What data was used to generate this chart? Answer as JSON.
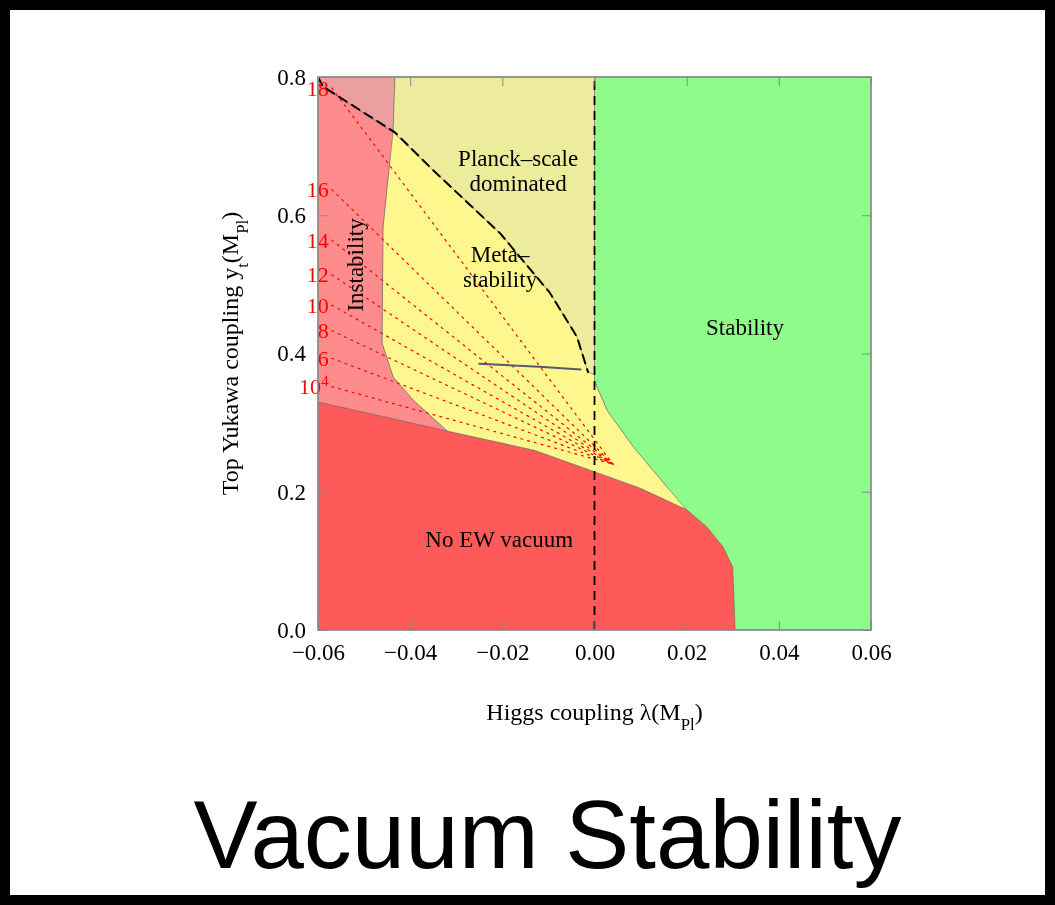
{
  "chart_data": {
    "type": "area",
    "title": "Vacuum Stability",
    "xlabel": "Higgs coupling λ(M$_{Pl}$)",
    "ylabel": "Top Yukawa coupling y$_{t}$(M$_{Pl}$)",
    "xlim": [
      -0.06,
      0.06
    ],
    "ylim": [
      0,
      0.8
    ],
    "xticks": [
      {
        "value": -0.06,
        "label": "−0.06"
      },
      {
        "value": -0.04,
        "label": "−0.04"
      },
      {
        "value": -0.02,
        "label": "−0.02"
      },
      {
        "value": 0,
        "label": "0.00"
      },
      {
        "value": 0.02,
        "label": "0.02"
      },
      {
        "value": 0.04,
        "label": "0.04"
      },
      {
        "value": 0.06,
        "label": "0.06"
      }
    ],
    "yticks": [
      {
        "value": 0,
        "label": "0.0"
      },
      {
        "value": 0.2,
        "label": "0.2"
      },
      {
        "value": 0.4,
        "label": "0.4"
      },
      {
        "value": 0.6,
        "label": "0.6"
      },
      {
        "value": 0.8,
        "label": "0.8"
      }
    ],
    "series": [
      {
        "name": "Stability",
        "color": "#8ffb8a",
        "x": [
          0,
          0,
          0.0027,
          0.0084,
          0.0157,
          0.0305,
          0.06,
          0.06
        ],
        "values": [
          0.8,
          0.36,
          0.318,
          0.265,
          0.207,
          0,
          0,
          0.8
        ]
      },
      {
        "name": "No EW vacuum",
        "color": "#ff5a5a",
        "x": [
          -0.06,
          -0.06,
          -0.032,
          -0.013,
          0,
          0.01,
          0.02,
          0.0244,
          0.0279,
          0.03,
          0.0305,
          0.0305
        ],
        "values": [
          0,
          0.33,
          0.288,
          0.26,
          0.229,
          0.205,
          0.174,
          0.149,
          0.12,
          0.091,
          0.004,
          0
        ]
      },
      {
        "name": "Meta–\nstability",
        "color": "#fdf78d",
        "x": [
          -0.0433,
          -0.0444,
          -0.0459,
          -0.0461,
          -0.0437,
          -0.0394,
          -0.032,
          -0.013,
          0,
          0.01,
          0.02,
          0.0157,
          0.0084,
          0.0027,
          0,
          0
        ],
        "values": [
          0.8,
          0.68,
          0.583,
          0.415,
          0.366,
          0.333,
          0.288,
          0.26,
          0.229,
          0.205,
          0.174,
          0.207,
          0.265,
          0.318,
          0.36,
          0.8
        ]
      },
      {
        "name": "Instability",
        "color": "#ff8c8c",
        "x": [
          -0.06,
          -0.06,
          -0.0589,
          -0.0437,
          -0.0444,
          -0.0459,
          -0.0461,
          -0.0437,
          -0.0394,
          -0.032
        ],
        "values": [
          0.33,
          0.8,
          0.786,
          0.72,
          0.68,
          0.583,
          0.415,
          0.366,
          0.333,
          0.288
        ]
      },
      {
        "color": "#eb9f9f",
        "x": [
          -0.06,
          -0.0433,
          -0.0437,
          -0.0589
        ],
        "values": [
          0.8,
          0.8,
          0.72,
          0.786
        ]
      },
      {
        "type": "line",
        "name": "10$^{4}$",
        "color": "#ff0000",
        "line_style": "dotted",
        "x": [
          -0.057,
          0.004
        ],
        "values": [
          0.352,
          0.24
        ]
      },
      {
        "type": "line",
        "name": "6",
        "color": "#ff0000",
        "line_style": "dotted",
        "x": [
          -0.057,
          0.004
        ],
        "values": [
          0.393,
          0.24
        ]
      },
      {
        "type": "line",
        "name": "8",
        "color": "#ff0000",
        "line_style": "dotted",
        "x": [
          -0.057,
          0.004
        ],
        "values": [
          0.433,
          0.24
        ]
      },
      {
        "type": "line",
        "name": "10",
        "color": "#ff0000",
        "line_style": "dotted",
        "x": [
          -0.057,
          0.004
        ],
        "values": [
          0.47,
          0.24
        ]
      },
      {
        "type": "line",
        "name": "12",
        "color": "#ff0000",
        "line_style": "dotted",
        "x": [
          -0.057,
          0.004
        ],
        "values": [
          0.514,
          0.24
        ]
      },
      {
        "type": "line",
        "name": "14",
        "color": "#ff0000",
        "line_style": "dotted",
        "x": [
          -0.057,
          0.004
        ],
        "values": [
          0.564,
          0.24
        ]
      },
      {
        "type": "line",
        "name": "16",
        "color": "#ff0000",
        "line_style": "dotted",
        "x": [
          -0.057,
          0.004
        ],
        "values": [
          0.637,
          0.24
        ]
      },
      {
        "type": "line",
        "name": "18",
        "color": "#ff0000",
        "line_style": "dotted",
        "x": [
          -0.057,
          0.004
        ],
        "values": [
          0.784,
          0.24
        ]
      },
      {
        "name": "Planck–scale\ndominated",
        "color": "#ecec9c",
        "x": [
          -0.0433,
          0,
          0,
          -0.0014,
          -0.0038,
          -0.0097,
          -0.0205,
          -0.035,
          -0.0437
        ],
        "values": [
          0.8,
          0.8,
          0.37,
          0.373,
          0.424,
          0.488,
          0.574,
          0.665,
          0.72
        ]
      },
      {
        "type": "line",
        "color": "#000000",
        "line_style": "dashed",
        "x": [
          -0.06,
          -0.0589,
          -0.0433,
          -0.035,
          -0.0205,
          -0.0097,
          -0.0038,
          -0.0014
        ],
        "values": [
          0.8,
          0.786,
          0.72,
          0.665,
          0.574,
          0.488,
          0.424,
          0.373
        ]
      },
      {
        "type": "line",
        "color": "#555a70",
        "line_style": "solid",
        "x": [
          -0.025,
          -0.012,
          -0.003
        ],
        "values": [
          0.385,
          0.381,
          0.377
        ]
      }
    ],
    "ref_lines": [
      {
        "axis": "x",
        "value": 0,
        "color": "#000000",
        "line_style": "dashed"
      }
    ]
  }
}
